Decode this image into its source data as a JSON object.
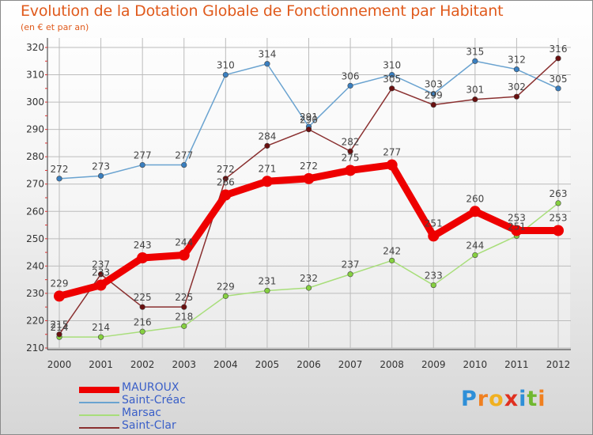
{
  "title": "Evolution de la Dotation Globale de Fonctionnement par Habitant",
  "subtitle": "(en € et par an)",
  "logo_text": "Proxiti",
  "chart_data": {
    "type": "line",
    "title": "Evolution de la Dotation Globale de Fonctionnement par Habitant",
    "ylabel": "(en € et par an)",
    "xlabel": "",
    "ylim": [
      210,
      320
    ],
    "yticks": [
      210,
      220,
      230,
      240,
      250,
      260,
      270,
      280,
      290,
      300,
      310,
      320
    ],
    "grid": true,
    "legend_position": "bottom-left",
    "categories": [
      "2000",
      "2001",
      "2002",
      "2003",
      "2004",
      "2005",
      "2006",
      "2007",
      "2008",
      "2009",
      "2010",
      "2011",
      "2012"
    ],
    "series": [
      {
        "name": "MAUROUX",
        "color": "#ee0000",
        "dot": "#ee0000",
        "bold": true,
        "values": [
          229,
          233,
          243,
          244,
          266,
          271,
          272,
          275,
          277,
          251,
          260,
          253,
          253
        ]
      },
      {
        "name": "Saint-Créac",
        "color": "#6aa3d0",
        "dot": "#3a7fc0",
        "bold": false,
        "values": [
          272,
          273,
          277,
          277,
          310,
          314,
          291,
          306,
          310,
          303,
          315,
          312,
          305
        ]
      },
      {
        "name": "Marsac",
        "color": "#a8de7a",
        "dot": "#86d040",
        "bold": false,
        "values": [
          214,
          214,
          216,
          218,
          229,
          231,
          232,
          237,
          242,
          233,
          244,
          251,
          263
        ]
      },
      {
        "name": "Saint-Clar",
        "color": "#8a3030",
        "dot": "#6a1010",
        "bold": false,
        "values": [
          215,
          237,
          225,
          225,
          272,
          284,
          290,
          282,
          305,
          299,
          301,
          302,
          316
        ]
      }
    ]
  }
}
